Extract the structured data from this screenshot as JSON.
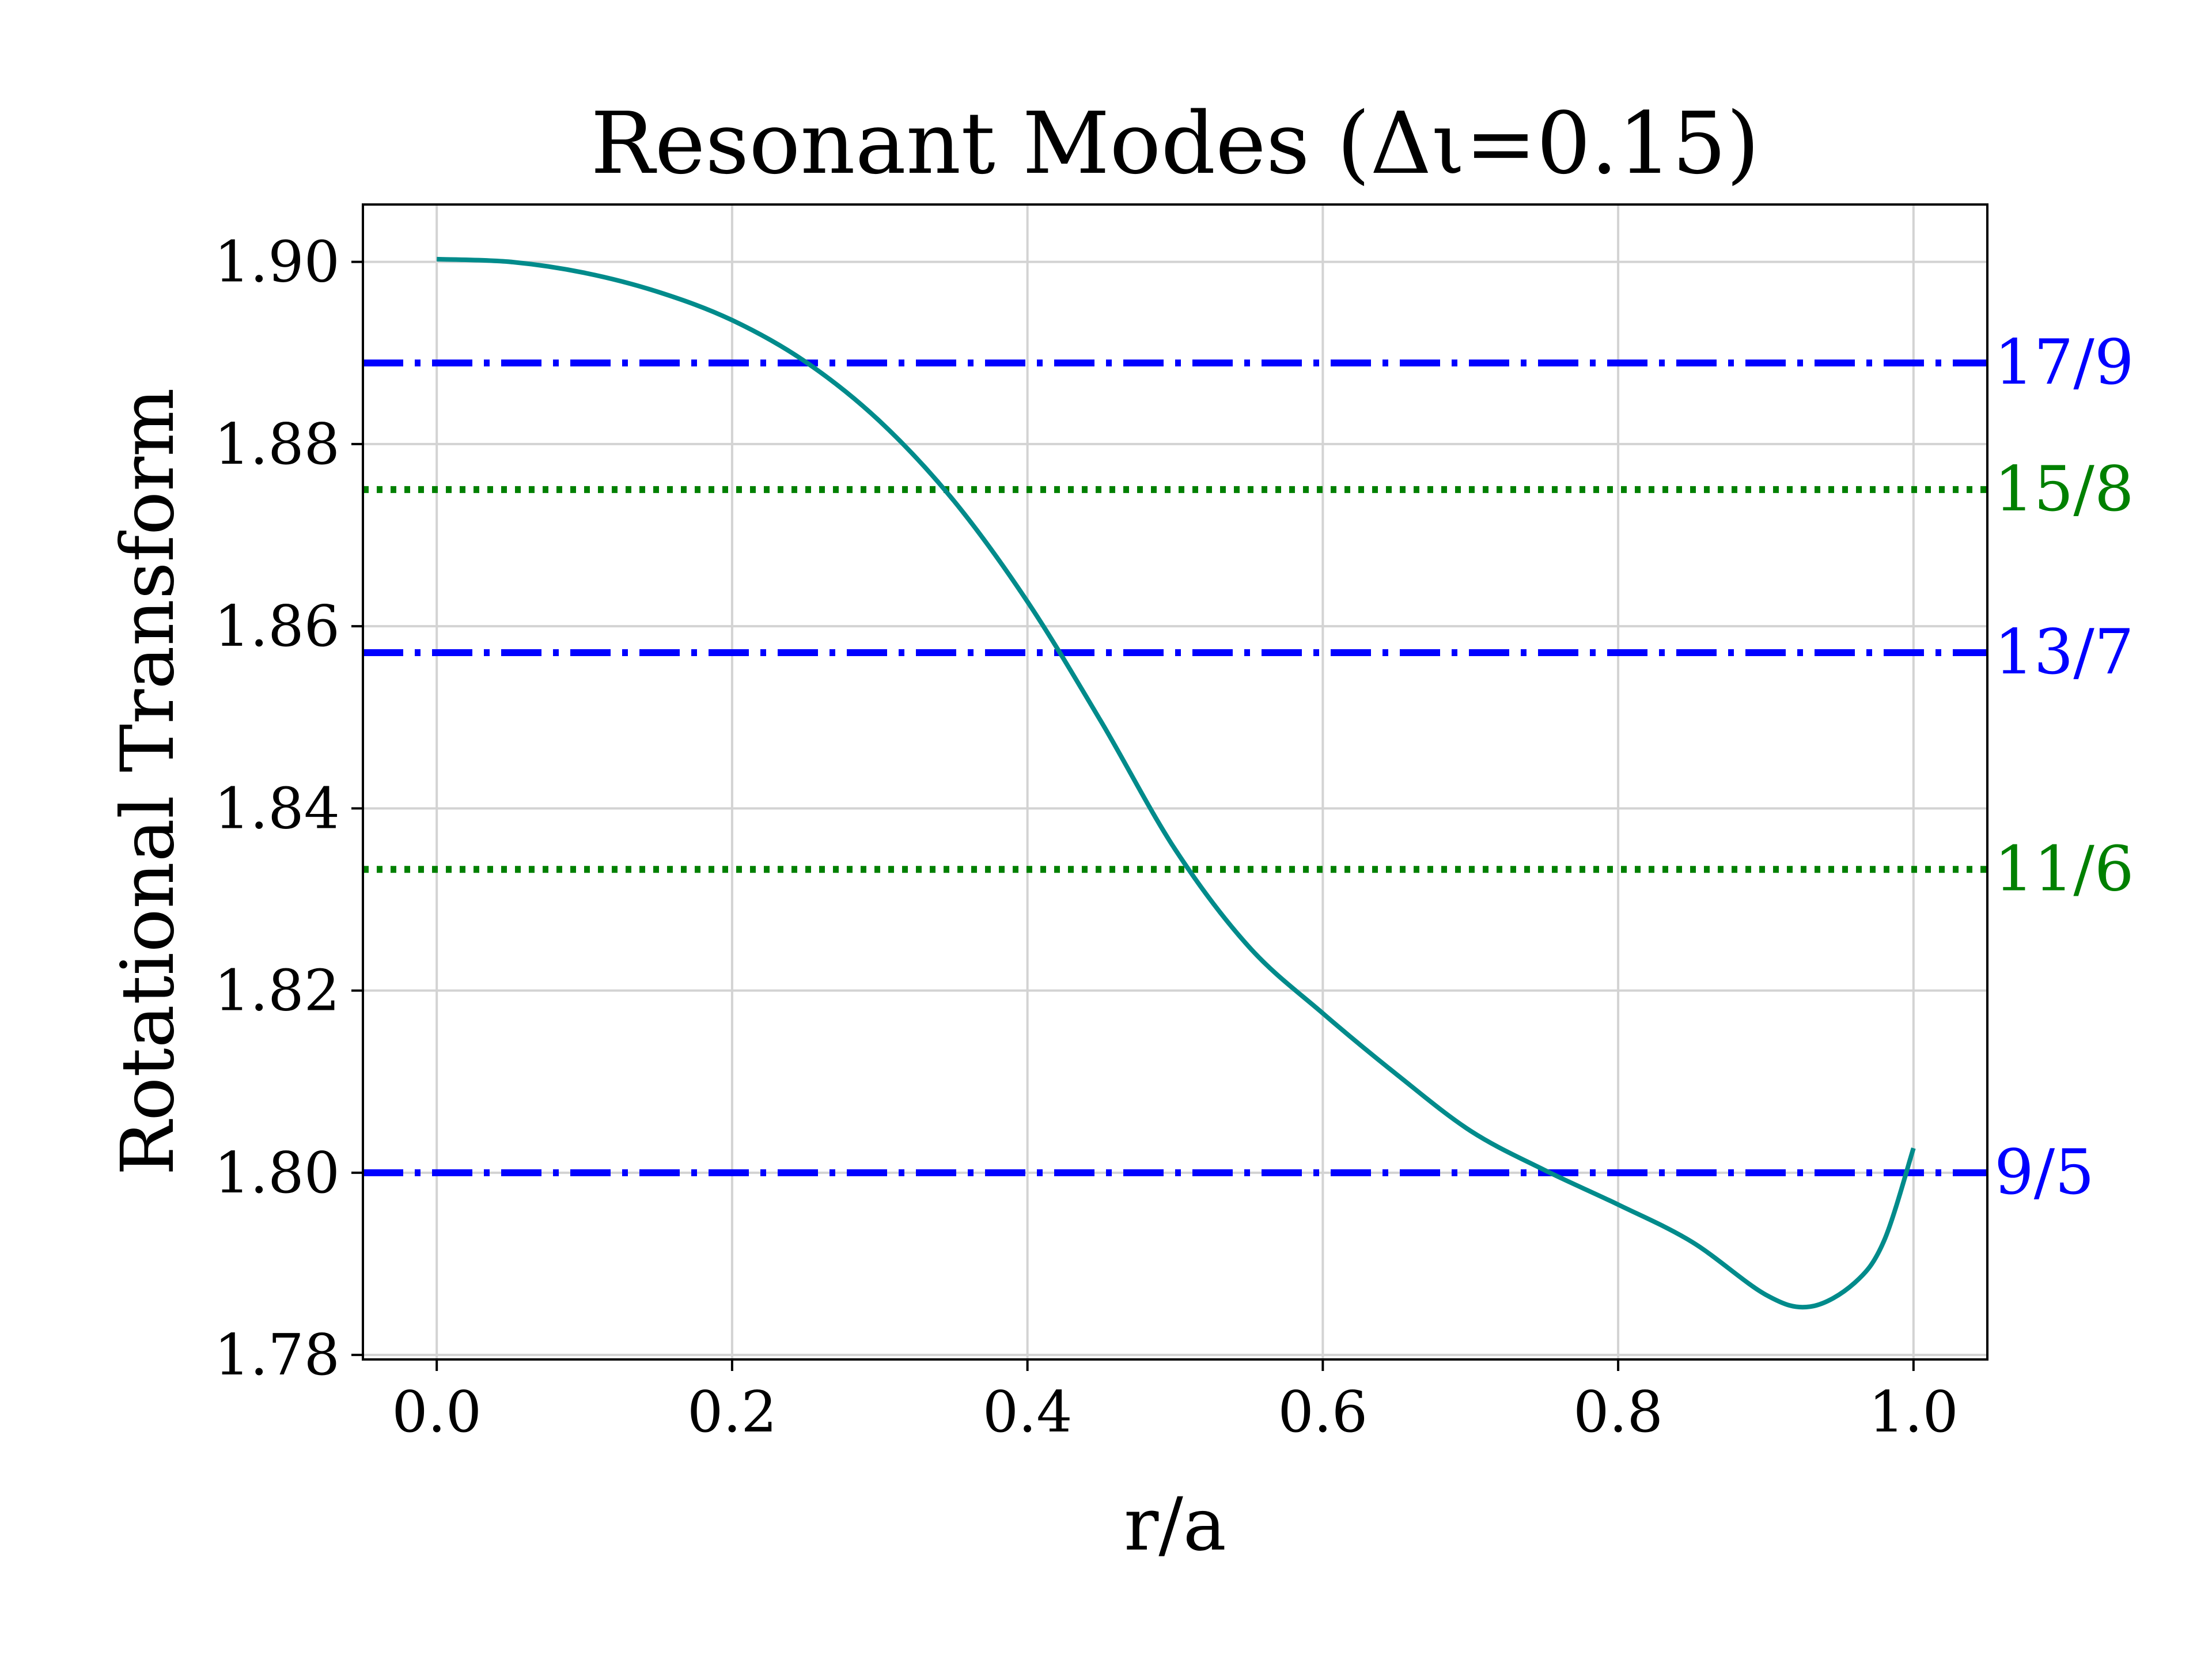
{
  "chart_data": {
    "type": "line",
    "title": "Resonant Modes (Δι=0.15)",
    "xlabel": "r/a",
    "ylabel": "Rotational Transform",
    "xlim": [
      -0.05,
      1.05
    ],
    "ylim": [
      1.7795,
      1.9063
    ],
    "grid": true,
    "xticks": [
      0.0,
      0.2,
      0.4,
      0.6,
      0.8,
      1.0
    ],
    "xtick_labels": [
      "0.0",
      "0.2",
      "0.4",
      "0.6",
      "0.8",
      "1.0"
    ],
    "yticks": [
      1.78,
      1.8,
      1.82,
      1.84,
      1.86,
      1.88,
      1.9
    ],
    "ytick_labels": [
      "1.78",
      "1.80",
      "1.82",
      "1.84",
      "1.86",
      "1.88",
      "1.90"
    ],
    "series": [
      {
        "color": "#008b8b",
        "x": [
          0.0,
          0.05,
          0.1,
          0.15,
          0.2,
          0.25,
          0.3,
          0.35,
          0.4,
          0.45,
          0.5,
          0.55,
          0.6,
          0.65,
          0.7,
          0.75,
          0.8,
          0.85,
          0.9,
          0.93,
          0.96,
          0.98,
          1.0
        ],
        "y": [
          1.9003,
          1.9,
          1.8988,
          1.8967,
          1.8936,
          1.889,
          1.8825,
          1.8738,
          1.8627,
          1.8495,
          1.8355,
          1.8248,
          1.8175,
          1.8108,
          1.8046,
          1.8003,
          1.7965,
          1.7924,
          1.7866,
          1.7853,
          1.7879,
          1.7925,
          1.8027
        ]
      }
    ],
    "hlines": [
      {
        "label": "17/9",
        "y": 1.8889,
        "style": "dashdot",
        "color": "#0000ff"
      },
      {
        "label": "15/8",
        "y": 1.875,
        "style": "dotted",
        "color": "#008000"
      },
      {
        "label": "13/7",
        "y": 1.8571,
        "style": "dashdot",
        "color": "#0000ff"
      },
      {
        "label": "11/6",
        "y": 1.8333,
        "style": "dotted",
        "color": "#008000"
      },
      {
        "label": "9/5",
        "y": 1.8,
        "style": "dashdot",
        "color": "#0000ff"
      }
    ]
  }
}
